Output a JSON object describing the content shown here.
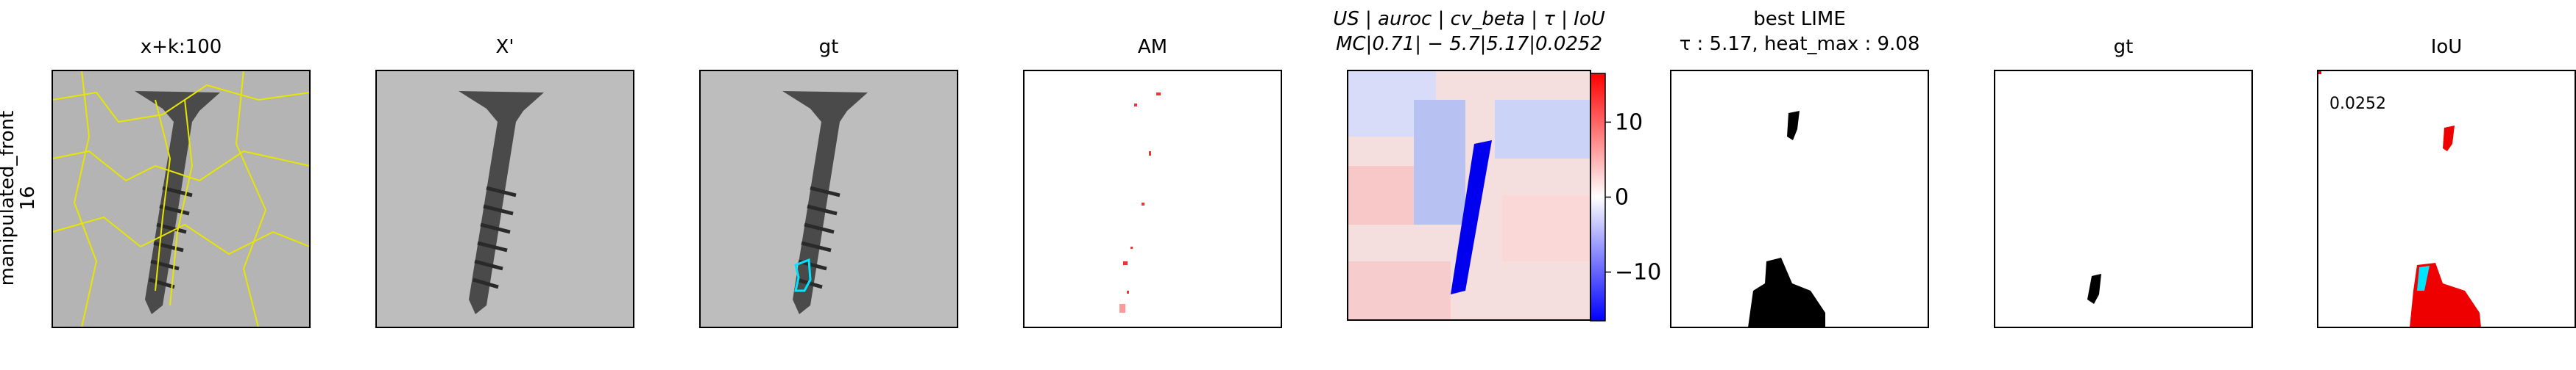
{
  "row_label": [
    "manipulated_front",
    "16"
  ],
  "panels": [
    {
      "title": "x+k:100"
    },
    {
      "title": "X'"
    },
    {
      "title": "gt"
    },
    {
      "title": "AM"
    },
    {
      "title": [
        "US | auroc | cv_beta | τ | IoU",
        "MC|0.71| − 5.7|5.17|0.0252"
      ],
      "colorbar": {
        "lim": [
          -16.5,
          16.5
        ],
        "ticks": [
          10,
          0,
          {
            "value": -10,
            "label": "−10"
          }
        ]
      }
    },
    {
      "title": [
        "best LIME",
        "τ : 5.17, heat_max : 9.08"
      ]
    },
    {
      "title": "gt"
    },
    {
      "title": "IoU",
      "annotation": "0.0252"
    }
  ]
}
